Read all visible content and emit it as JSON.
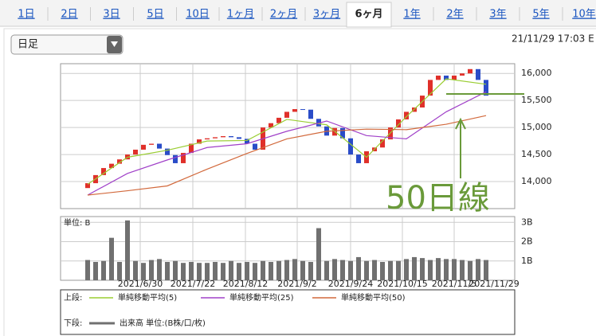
{
  "tabs": [
    "1日",
    "2日",
    "3日",
    "5日",
    "10日",
    "1ヶ月",
    "2ヶ月",
    "3ヶ月",
    "6ヶ月",
    "1年",
    "2年",
    "3年",
    "5年",
    "10年"
  ],
  "active_tab": 8,
  "period_select": "日足",
  "timestamp": "21/11/29 17:03 E",
  "chart_data": [
    {
      "type": "candlestick",
      "legend_title": "上段:",
      "annotation": "50日線",
      "up_color": "#e0302a",
      "down_color": "#2a4cc8",
      "open": [
        13880,
        13970,
        14120,
        14250,
        14330,
        14410,
        14500,
        14590,
        14680,
        14700,
        14610,
        14490,
        14340,
        14530,
        14700,
        14780,
        14800,
        14820,
        14840,
        14820,
        14790,
        14700,
        14590,
        15000,
        15080,
        15180,
        15290,
        15340,
        15330,
        15160,
        15020,
        14850,
        14990,
        14800,
        14500,
        14340,
        14560,
        14630,
        14780,
        15000,
        15150,
        15290,
        15370,
        15590,
        15880,
        15960,
        15880,
        15960,
        16000,
        16080,
        15880
      ],
      "close": [
        13970,
        14120,
        14250,
        14330,
        14410,
        14500,
        14590,
        14680,
        14700,
        14610,
        14490,
        14340,
        14530,
        14700,
        14780,
        14800,
        14820,
        14840,
        14820,
        14790,
        14700,
        14590,
        15000,
        15080,
        15180,
        15290,
        15340,
        15330,
        15160,
        15020,
        14850,
        14990,
        14800,
        14500,
        14340,
        14560,
        14630,
        14780,
        15000,
        15150,
        15290,
        15370,
        15590,
        15880,
        15960,
        15880,
        15960,
        16000,
        16080,
        15880,
        15590
      ],
      "series": [
        {
          "name": "単純移動平均(5)",
          "color": "#9acd32",
          "x": [
            0,
            5,
            10,
            15,
            20,
            25,
            30,
            35,
            40,
            45,
            50
          ],
          "values": [
            13950,
            14450,
            14580,
            14750,
            14760,
            15150,
            15050,
            14450,
            15200,
            15900,
            15800
          ]
        },
        {
          "name": "単純移動平均(25)",
          "color": "#a040c8",
          "x": [
            0,
            5,
            10,
            15,
            20,
            25,
            30,
            35,
            40,
            45,
            50
          ],
          "values": [
            13750,
            14150,
            14400,
            14630,
            14700,
            14930,
            15120,
            14850,
            14790,
            15290,
            15660
          ]
        },
        {
          "name": "単純移動平均(50)",
          "color": "#d2693c",
          "x": [
            0,
            5,
            10,
            15,
            20,
            25,
            30,
            35,
            40,
            45,
            50
          ],
          "values": [
            13750,
            13830,
            13920,
            14230,
            14520,
            14790,
            14930,
            14970,
            14960,
            15060,
            15220
          ]
        }
      ],
      "xlim": [
        -3.4,
        53.6
      ],
      "xticks": [
        {
          "value": 6.6,
          "label": "2021/6/30"
        },
        {
          "value": 13.2,
          "label": "2021/7/22"
        },
        {
          "value": 19.8,
          "label": "2021/8/12"
        },
        {
          "value": 26.3,
          "label": "2021/9/2"
        },
        {
          "value": 33,
          "label": "2021/9/24"
        },
        {
          "value": 39.5,
          "label": "2021/10/15"
        },
        {
          "value": 46,
          "label": "2021/11/5"
        },
        {
          "value": 51,
          "label": "2021/11/29"
        }
      ],
      "ylim": [
        13500,
        16180
      ],
      "yticks": [
        {
          "value": 14000,
          "label": "14,000"
        },
        {
          "value": 14500,
          "label": "14,500"
        },
        {
          "value": 15000,
          "label": "15,000"
        },
        {
          "value": 15500,
          "label": "15,500"
        },
        {
          "value": 16000,
          "label": "16,000"
        }
      ],
      "grid": true
    },
    {
      "type": "bar",
      "title": "単位: B",
      "legend_title": "下段:",
      "legend_label": "出来高 単位:(B株/口/枚)",
      "color": "#707070",
      "values": [
        1.05,
        0.95,
        1.0,
        2.2,
        0.95,
        3.1,
        1.0,
        0.9,
        1.05,
        1.1,
        0.95,
        1.0,
        0.9,
        0.95,
        0.9,
        0.9,
        0.95,
        0.9,
        1.0,
        0.9,
        0.95,
        0.9,
        1.0,
        0.95,
        1.0,
        1.05,
        1.1,
        1.0,
        0.95,
        2.7,
        1.0,
        1.1,
        1.05,
        1.0,
        1.2,
        1.0,
        1.05,
        0.95,
        1.0,
        1.0,
        1.1,
        1.2,
        1.15,
        1.05,
        1.15,
        1.1,
        1.1,
        1.05,
        1.0,
        1.1,
        1.05
      ],
      "xlim": [
        -3.4,
        53.6
      ],
      "ylim": [
        0,
        3.3
      ],
      "yticks": [
        {
          "value": 1,
          "label": "1B"
        },
        {
          "value": 2,
          "label": "2B"
        },
        {
          "value": 3,
          "label": "3B"
        }
      ]
    }
  ]
}
